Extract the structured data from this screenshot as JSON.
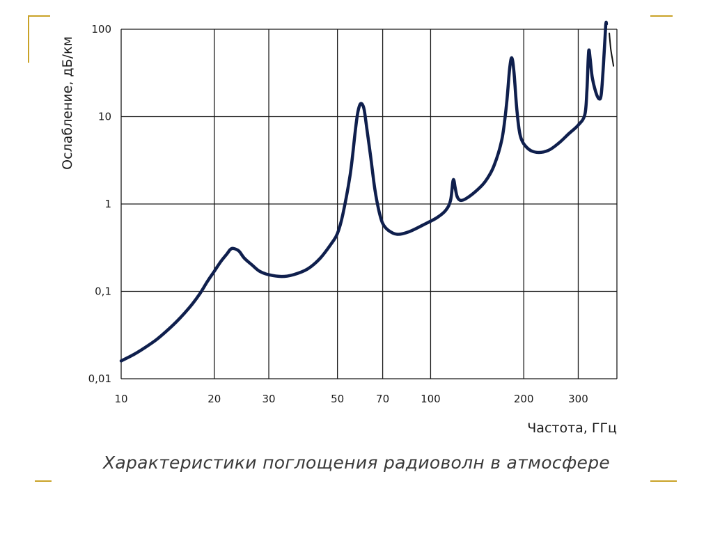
{
  "colors": {
    "curve": "#0f1f4d",
    "grid": "#1a1a1a",
    "accent": "#c9a227"
  },
  "caption": "Характеристики поглощения радиоволн в атмосфере",
  "chart_data": {
    "type": "line",
    "title": "",
    "xlabel": "Частота, ГГц",
    "ylabel": "Ослабление, дБ/км",
    "x_scale": "log",
    "y_scale": "log",
    "xlim": [
      10,
      400
    ],
    "ylim": [
      0.01,
      100
    ],
    "grid": true,
    "x_ticks": [
      {
        "value": 10,
        "label": "10"
      },
      {
        "value": 20,
        "label": "20"
      },
      {
        "value": 30,
        "label": "30"
      },
      {
        "value": 50,
        "label": "50"
      },
      {
        "value": 70,
        "label": "70"
      },
      {
        "value": 100,
        "label": "100"
      },
      {
        "value": 200,
        "label": "200"
      },
      {
        "value": 300,
        "label": "300"
      }
    ],
    "y_ticks": [
      {
        "value": 0.01,
        "label": "0,01"
      },
      {
        "value": 0.1,
        "label": "0,1"
      },
      {
        "value": 1,
        "label": "1"
      },
      {
        "value": 10,
        "label": "10"
      },
      {
        "value": 100,
        "label": "100"
      }
    ],
    "series": [
      {
        "values": [
          [
            10,
            0.016
          ],
          [
            11,
            0.019
          ],
          [
            12,
            0.023
          ],
          [
            13,
            0.028
          ],
          [
            14,
            0.035
          ],
          [
            15,
            0.044
          ],
          [
            16,
            0.056
          ],
          [
            17,
            0.072
          ],
          [
            18,
            0.095
          ],
          [
            19,
            0.13
          ],
          [
            20,
            0.17
          ],
          [
            21,
            0.22
          ],
          [
            22,
            0.27
          ],
          [
            22.5,
            0.3
          ],
          [
            23,
            0.31
          ],
          [
            24,
            0.29
          ],
          [
            25,
            0.24
          ],
          [
            26.5,
            0.2
          ],
          [
            28,
            0.17
          ],
          [
            30,
            0.155
          ],
          [
            33,
            0.148
          ],
          [
            36,
            0.155
          ],
          [
            40,
            0.18
          ],
          [
            44,
            0.24
          ],
          [
            48,
            0.36
          ],
          [
            50,
            0.46
          ],
          [
            52,
            0.75
          ],
          [
            55,
            2.2
          ],
          [
            57,
            6.5
          ],
          [
            58,
            10.5
          ],
          [
            59,
            13.5
          ],
          [
            60,
            14
          ],
          [
            61,
            12
          ],
          [
            62,
            8
          ],
          [
            64,
            3.5
          ],
          [
            66,
            1.5
          ],
          [
            68,
            0.85
          ],
          [
            70,
            0.6
          ],
          [
            73,
            0.5
          ],
          [
            78,
            0.45
          ],
          [
            85,
            0.48
          ],
          [
            95,
            0.58
          ],
          [
            105,
            0.7
          ],
          [
            112,
            0.85
          ],
          [
            116,
            1.1
          ],
          [
            118,
            1.8
          ],
          [
            119,
            1.85
          ],
          [
            120,
            1.55
          ],
          [
            122,
            1.2
          ],
          [
            125,
            1.1
          ],
          [
            130,
            1.15
          ],
          [
            140,
            1.4
          ],
          [
            150,
            1.8
          ],
          [
            160,
            2.7
          ],
          [
            170,
            5.5
          ],
          [
            176,
            14
          ],
          [
            180,
            35
          ],
          [
            183,
            47
          ],
          [
            186,
            32
          ],
          [
            190,
            12
          ],
          [
            195,
            6
          ],
          [
            205,
            4.4
          ],
          [
            220,
            3.9
          ],
          [
            240,
            4.1
          ],
          [
            260,
            5
          ],
          [
            280,
            6.4
          ],
          [
            300,
            8
          ],
          [
            315,
            10.5
          ],
          [
            320,
            20
          ],
          [
            323,
            45
          ],
          [
            325,
            58
          ],
          [
            328,
            45
          ],
          [
            333,
            28
          ],
          [
            342,
            19
          ],
          [
            350,
            16
          ],
          [
            356,
            18
          ],
          [
            362,
            40
          ],
          [
            368,
            110
          ],
          [
            370,
            115
          ]
        ]
      },
      {
        "values": [
          [
            378,
            90
          ],
          [
            382,
            60
          ],
          [
            387,
            45
          ],
          [
            390,
            38
          ]
        ]
      }
    ]
  }
}
